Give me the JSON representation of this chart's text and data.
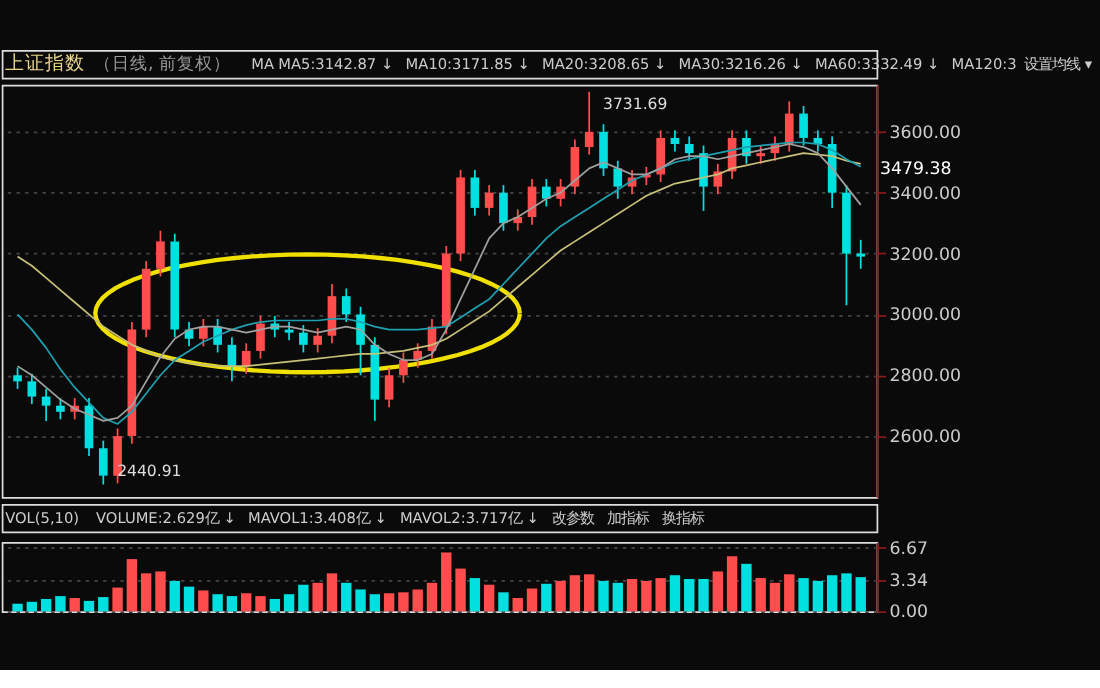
{
  "chart_data": [
    {
      "type": "candlestick",
      "title": "上证指数",
      "subtitle": "（日线, 前复权）",
      "categories": [
        null,
        null,
        null,
        null,
        null,
        null,
        null,
        null,
        null,
        null,
        null,
        null,
        null,
        null,
        null,
        null,
        null,
        null,
        null,
        null,
        null,
        null,
        null,
        null,
        null,
        null,
        null,
        null,
        null,
        null,
        null,
        null,
        null,
        null,
        null,
        null,
        null,
        null,
        null,
        null,
        null,
        null,
        null,
        null,
        null,
        null,
        null,
        null,
        null,
        null,
        null,
        null,
        null,
        null,
        null,
        null,
        null,
        null,
        null,
        null
      ],
      "ohlc": [
        [
          2800,
          2825,
          2755,
          2780
        ],
        [
          2780,
          2805,
          2705,
          2730
        ],
        [
          2730,
          2755,
          2650,
          2700
        ],
        [
          2700,
          2725,
          2655,
          2680
        ],
        [
          2680,
          2725,
          2655,
          2700
        ],
        [
          2700,
          2725,
          2535,
          2560
        ],
        [
          2560,
          2585,
          2440.91,
          2470
        ],
        [
          2470,
          2625,
          2445,
          2600
        ],
        [
          2600,
          2975,
          2575,
          2950
        ],
        [
          2950,
          3175,
          2925,
          3150
        ],
        [
          3150,
          3275,
          3125,
          3240
        ],
        [
          3240,
          3265,
          2925,
          2950
        ],
        [
          2950,
          2975,
          2895,
          2920
        ],
        [
          2920,
          2985,
          2895,
          2960
        ],
        [
          2960,
          2985,
          2875,
          2900
        ],
        [
          2900,
          2925,
          2780,
          2830
        ],
        [
          2830,
          2905,
          2805,
          2880
        ],
        [
          2880,
          2995,
          2855,
          2970
        ],
        [
          2970,
          2995,
          2925,
          2950
        ],
        [
          2950,
          2975,
          2915,
          2940
        ],
        [
          2940,
          2965,
          2875,
          2900
        ],
        [
          2900,
          2955,
          2875,
          2930
        ],
        [
          2930,
          3100,
          2905,
          3060
        ],
        [
          3060,
          3085,
          2975,
          3000
        ],
        [
          3000,
          3025,
          2800,
          2900
        ],
        [
          2900,
          2925,
          2650,
          2720
        ],
        [
          2720,
          2825,
          2695,
          2800
        ],
        [
          2800,
          2875,
          2775,
          2850
        ],
        [
          2850,
          2905,
          2825,
          2880
        ],
        [
          2880,
          2985,
          2855,
          2960
        ],
        [
          2960,
          3225,
          2935,
          3200
        ],
        [
          3200,
          3475,
          3175,
          3450
        ],
        [
          3450,
          3475,
          3325,
          3350
        ],
        [
          3350,
          3425,
          3325,
          3400
        ],
        [
          3400,
          3425,
          3275,
          3300
        ],
        [
          3300,
          3345,
          3275,
          3320
        ],
        [
          3320,
          3445,
          3295,
          3420
        ],
        [
          3420,
          3445,
          3355,
          3380
        ],
        [
          3380,
          3445,
          3355,
          3420
        ],
        [
          3420,
          3575,
          3395,
          3550
        ],
        [
          3550,
          3731.69,
          3525,
          3600
        ],
        [
          3600,
          3625,
          3455,
          3480
        ],
        [
          3480,
          3505,
          3380,
          3420
        ],
        [
          3420,
          3475,
          3395,
          3450
        ],
        [
          3450,
          3485,
          3425,
          3460
        ],
        [
          3460,
          3605,
          3435,
          3580
        ],
        [
          3580,
          3605,
          3535,
          3560
        ],
        [
          3560,
          3585,
          3505,
          3530
        ],
        [
          3530,
          3555,
          3340,
          3420
        ],
        [
          3420,
          3495,
          3395,
          3470
        ],
        [
          3470,
          3605,
          3445,
          3580
        ],
        [
          3580,
          3605,
          3495,
          3520
        ],
        [
          3520,
          3555,
          3495,
          3530
        ],
        [
          3530,
          3585,
          3505,
          3560
        ],
        [
          3560,
          3700,
          3535,
          3660
        ],
        [
          3660,
          3685,
          3555,
          3580
        ],
        [
          3580,
          3605,
          3535,
          3560
        ],
        [
          3560,
          3585,
          3350,
          3400
        ],
        [
          3400,
          3425,
          3030,
          3200
        ],
        [
          3200,
          3245,
          3150,
          3190
        ]
      ],
      "colors": [
        "#00e0e0",
        "#00e0e0",
        "#00e0e0",
        "#00e0e0",
        "#ff4d4d",
        "#00e0e0",
        "#00e0e0",
        "#ff4d4d",
        "#ff4d4d",
        "#ff4d4d",
        "#ff4d4d",
        "#00e0e0",
        "#00e0e0",
        "#ff4d4d",
        "#00e0e0",
        "#00e0e0",
        "#ff4d4d",
        "#ff4d4d",
        "#00e0e0",
        "#00e0e0",
        "#00e0e0",
        "#ff4d4d",
        "#ff4d4d",
        "#00e0e0",
        "#00e0e0",
        "#00e0e0",
        "#ff4d4d",
        "#ff4d4d",
        "#ff4d4d",
        "#ff4d4d",
        "#ff4d4d",
        "#ff4d4d",
        "#00e0e0",
        "#ff4d4d",
        "#00e0e0",
        "#ff4d4d",
        "#ff4d4d",
        "#00e0e0",
        "#ff4d4d",
        "#ff4d4d",
        "#ff4d4d",
        "#00e0e0",
        "#00e0e0",
        "#ff4d4d",
        "#ff4d4d",
        "#ff4d4d",
        "#00e0e0",
        "#00e0e0",
        "#00e0e0",
        "#ff4d4d",
        "#ff4d4d",
        "#00e0e0",
        "#ff4d4d",
        "#ff4d4d",
        "#ff4d4d",
        "#00e0e0",
        "#00e0e0",
        "#00e0e0",
        "#00e0e0",
        "#00e0e0"
      ],
      "series": [
        {
          "type": "line",
          "color": "#c8c078",
          "values": [
            3190,
            3160,
            3120,
            3080,
            3040,
            3000,
            2960,
            2930,
            2900,
            2880,
            2860,
            2850,
            2840,
            2835,
            2830,
            2830,
            2830,
            2835,
            2840,
            2845,
            2850,
            2855,
            2860,
            2865,
            2870,
            2870,
            2875,
            2880,
            2890,
            2900,
            2920,
            2950,
            2980,
            3010,
            3050,
            3090,
            3130,
            3170,
            3210,
            3240,
            3270,
            3300,
            3330,
            3360,
            3390,
            3410,
            3430,
            3440,
            3450,
            3460,
            3480,
            3490,
            3500,
            3510,
            3520,
            3530,
            3525,
            3520,
            3505,
            3495
          ]
        },
        {
          "type": "line",
          "color": "#1fa0b0",
          "values": [
            3000,
            2950,
            2890,
            2820,
            2760,
            2710,
            2660,
            2640,
            2680,
            2740,
            2800,
            2850,
            2880,
            2910,
            2930,
            2950,
            2965,
            2975,
            2980,
            2980,
            2980,
            2980,
            2985,
            2985,
            2975,
            2960,
            2950,
            2950,
            2950,
            2955,
            2960,
            2990,
            3020,
            3050,
            3100,
            3150,
            3200,
            3250,
            3290,
            3320,
            3350,
            3380,
            3410,
            3440,
            3460,
            3480,
            3500,
            3510,
            3520,
            3530,
            3540,
            3550,
            3555,
            3560,
            3565,
            3565,
            3560,
            3540,
            3510,
            3485
          ]
        },
        {
          "type": "line",
          "color": "#a0a0a0",
          "values": [
            2830,
            2800,
            2760,
            2720,
            2690,
            2670,
            2650,
            2660,
            2700,
            2780,
            2860,
            2920,
            2950,
            2960,
            2960,
            2950,
            2940,
            2950,
            2960,
            2960,
            2950,
            2940,
            2950,
            2960,
            2950,
            2900,
            2870,
            2850,
            2850,
            2870,
            2950,
            3050,
            3150,
            3250,
            3300,
            3320,
            3350,
            3380,
            3400,
            3440,
            3480,
            3500,
            3480,
            3460,
            3460,
            3480,
            3510,
            3520,
            3520,
            3510,
            3520,
            3530,
            3540,
            3550,
            3560,
            3550,
            3530,
            3480,
            3420,
            3360
          ]
        }
      ],
      "ylim": [
        2400,
        3755
      ],
      "yticks": [
        {
          "value": 2600,
          "label": "2600.00"
        },
        {
          "value": 2800,
          "label": "2800.00"
        },
        {
          "value": 3000,
          "label": "3000.00"
        },
        {
          "value": 3200,
          "label": "3200.00"
        },
        {
          "value": 3400,
          "label": "3400.00"
        },
        {
          "value": 3600,
          "label": "3600.00"
        }
      ],
      "grid": "y",
      "tick_labels": "y",
      "annotations": [
        "MA",
        "MA5:3142.87 ↓",
        "MA10:3171.85 ↓",
        "MA20:3208.65 ↓",
        "MA30:3216.26 ↓",
        "MA60:3332.49 ↓",
        "MA120:3",
        "设置均线 ▾",
        "2440.91",
        "3731.69",
        "3479.38"
      ]
    },
    {
      "type": "bar",
      "categories": [
        null,
        null,
        null,
        null,
        null,
        null,
        null,
        null,
        null,
        null,
        null,
        null,
        null,
        null,
        null,
        null,
        null,
        null,
        null,
        null,
        null,
        null,
        null,
        null,
        null,
        null,
        null,
        null,
        null,
        null,
        null,
        null,
        null,
        null,
        null,
        null,
        null,
        null,
        null,
        null,
        null,
        null,
        null,
        null,
        null,
        null,
        null,
        null,
        null,
        null,
        null,
        null,
        null,
        null,
        null,
        null,
        null,
        null,
        null,
        null
      ],
      "values": [
        0.8,
        1.0,
        1.3,
        1.6,
        1.4,
        1.1,
        1.5,
        2.5,
        5.5,
        4.0,
        4.2,
        3.2,
        2.6,
        2.2,
        1.8,
        1.6,
        1.9,
        1.6,
        1.3,
        1.8,
        2.8,
        3.0,
        4.0,
        3.0,
        2.3,
        1.8,
        1.9,
        2.0,
        2.3,
        3.0,
        6.2,
        4.5,
        3.5,
        2.8,
        2.0,
        1.4,
        2.4,
        2.9,
        3.2,
        3.8,
        3.9,
        3.2,
        3.0,
        3.4,
        3.2,
        3.5,
        3.8,
        3.4,
        3.4,
        4.2,
        5.8,
        5.0,
        3.5,
        3.0,
        3.9,
        3.5,
        3.2,
        3.8,
        4.0,
        3.6
      ],
      "colors": [
        "#00e0e0",
        "#00e0e0",
        "#00e0e0",
        "#00e0e0",
        "#ff4d4d",
        "#00e0e0",
        "#00e0e0",
        "#ff4d4d",
        "#ff4d4d",
        "#ff4d4d",
        "#ff4d4d",
        "#00e0e0",
        "#00e0e0",
        "#ff4d4d",
        "#00e0e0",
        "#00e0e0",
        "#ff4d4d",
        "#ff4d4d",
        "#00e0e0",
        "#00e0e0",
        "#00e0e0",
        "#ff4d4d",
        "#ff4d4d",
        "#00e0e0",
        "#00e0e0",
        "#00e0e0",
        "#ff4d4d",
        "#ff4d4d",
        "#ff4d4d",
        "#ff4d4d",
        "#ff4d4d",
        "#ff4d4d",
        "#00e0e0",
        "#ff4d4d",
        "#00e0e0",
        "#ff4d4d",
        "#ff4d4d",
        "#00e0e0",
        "#ff4d4d",
        "#ff4d4d",
        "#ff4d4d",
        "#00e0e0",
        "#00e0e0",
        "#ff4d4d",
        "#ff4d4d",
        "#ff4d4d",
        "#00e0e0",
        "#00e0e0",
        "#00e0e0",
        "#ff4d4d",
        "#ff4d4d",
        "#00e0e0",
        "#ff4d4d",
        "#ff4d4d",
        "#ff4d4d",
        "#00e0e0",
        "#00e0e0",
        "#00e0e0",
        "#00e0e0",
        "#00e0e0"
      ],
      "ylim": [
        0,
        7.3
      ],
      "yticks": [
        {
          "value": 0,
          "label": "0.00"
        },
        {
          "value": 3.34,
          "label": "3.34"
        },
        {
          "value": 6.67,
          "label": "6.67"
        }
      ],
      "grid": "y",
      "tick_labels": "y",
      "annotations": [
        "VOL(5,10)",
        "VOLUME:2.629亿 ↓",
        "MAVOL1:3.408亿 ↓",
        "MAVOL2:3.717亿 ↓",
        "改参数",
        "加指标",
        "换指标"
      ]
    }
  ]
}
